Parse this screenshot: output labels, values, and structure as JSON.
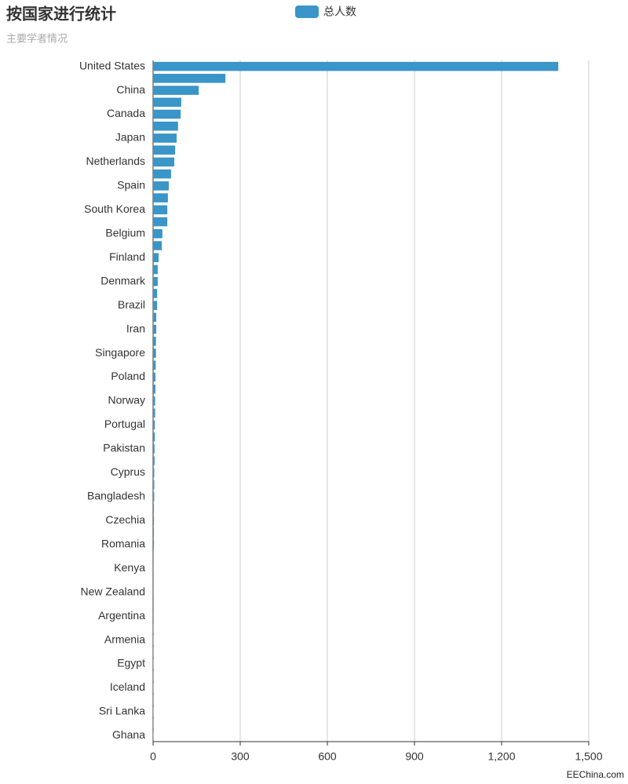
{
  "chart_data": {
    "type": "bar",
    "orientation": "horizontal",
    "title": "按国家进行统计",
    "subtitle": "主要学者情况",
    "watermark": "EEChina.com",
    "categories": [
      "United States",
      null,
      "China",
      null,
      "Canada",
      null,
      "Japan",
      null,
      "Netherlands",
      null,
      "Spain",
      null,
      "South Korea",
      null,
      "Belgium",
      null,
      "Finland",
      null,
      "Denmark",
      null,
      "Brazil",
      null,
      "Iran",
      null,
      "Singapore",
      null,
      "Poland",
      null,
      "Norway",
      null,
      "Portugal",
      null,
      "Pakistan",
      null,
      "Cyprus",
      null,
      "Bangladesh",
      null,
      "Czechia",
      null,
      "Romania",
      null,
      "Kenya",
      null,
      "New Zealand",
      null,
      "Argentina",
      null,
      "Armenia",
      null,
      "Egypt",
      null,
      "Iceland",
      null,
      "Sri Lanka",
      null,
      "Ghana"
    ],
    "series": [
      {
        "name": "总人数",
        "color": "#3a95c8",
        "values": [
          1395,
          249,
          157,
          97,
          95,
          86,
          81,
          76,
          73,
          62,
          54,
          51,
          49,
          49,
          32,
          30,
          19,
          16,
          16,
          14,
          14,
          11,
          11,
          10,
          10,
          9,
          8,
          8,
          7,
          7,
          6,
          6,
          5,
          5,
          4,
          4,
          4,
          3,
          3,
          3,
          3,
          2,
          2,
          2,
          2,
          2,
          2,
          1,
          1,
          1,
          1,
          1,
          1,
          1,
          1,
          1,
          1
        ]
      }
    ],
    "xlim": [
      0,
      1500
    ],
    "xticks": [
      0,
      300,
      600,
      900,
      {
        "value": 1200,
        "label": "1,200"
      },
      {
        "value": 1500,
        "label": "1,500"
      }
    ],
    "grid": true
  }
}
